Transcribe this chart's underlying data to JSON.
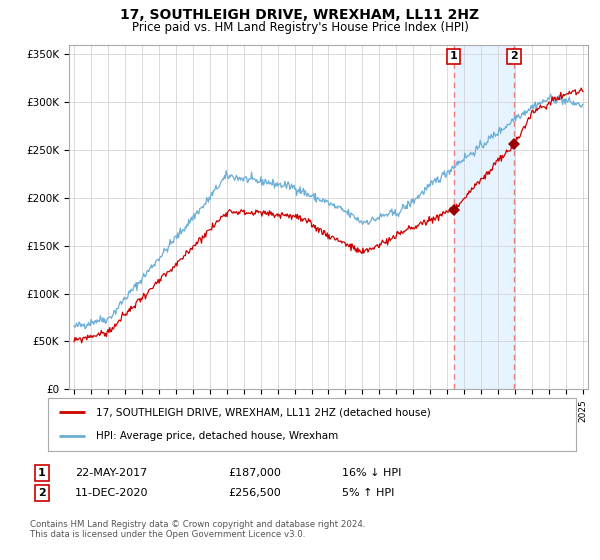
{
  "title": "17, SOUTHLEIGH DRIVE, WREXHAM, LL11 2HZ",
  "subtitle": "Price paid vs. HM Land Registry's House Price Index (HPI)",
  "ylim": [
    0,
    360000
  ],
  "yticks": [
    0,
    50000,
    100000,
    150000,
    200000,
    250000,
    300000,
    350000
  ],
  "ytick_labels": [
    "£0",
    "£50K",
    "£100K",
    "£150K",
    "£200K",
    "£250K",
    "£300K",
    "£350K"
  ],
  "marker1": {
    "date_x": 2017.38,
    "y": 187000,
    "label": "1",
    "date_str": "22-MAY-2017",
    "price": "£187,000",
    "pct": "16% ↓ HPI"
  },
  "marker2": {
    "date_x": 2020.94,
    "y": 256500,
    "label": "2",
    "date_str": "11-DEC-2020",
    "price": "£256,500",
    "pct": "5% ↑ HPI"
  },
  "legend_red": "17, SOUTHLEIGH DRIVE, WREXHAM, LL11 2HZ (detached house)",
  "legend_blue": "HPI: Average price, detached house, Wrexham",
  "footnote": "Contains HM Land Registry data © Crown copyright and database right 2024.\nThis data is licensed under the Open Government Licence v3.0.",
  "hpi_color": "#6baed6",
  "price_color": "#cc0000",
  "vline_color": "#e88080",
  "shade_color": "#ddeeff",
  "marker_color": "#990000",
  "grid_color": "#cccccc",
  "bg_color": "#ffffff",
  "xlim_start": 1994.7,
  "xlim_end": 2025.3
}
